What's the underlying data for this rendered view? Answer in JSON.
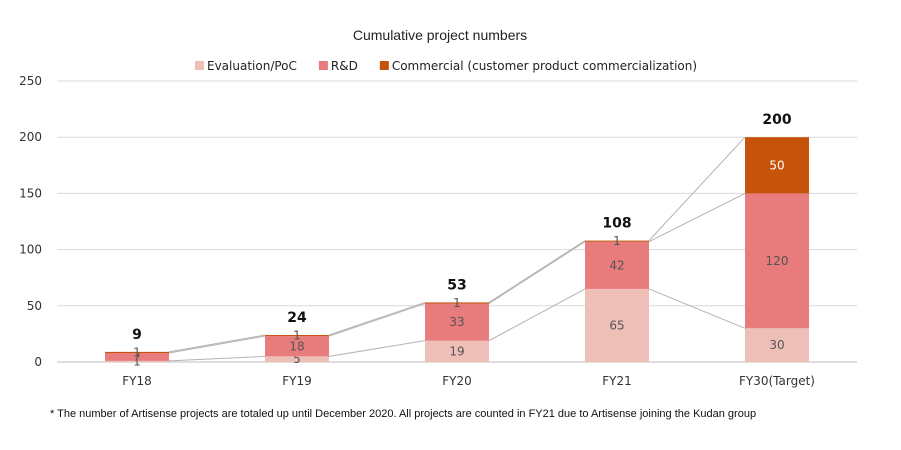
{
  "chart_data": {
    "type": "bar",
    "title": "Cumulative project numbers",
    "categories": [
      "FY18",
      "FY19",
      "FY20",
      "FY21",
      "FY30(Target)"
    ],
    "series": [
      {
        "name": "Evaluation/PoC",
        "values": [
          1,
          5,
          19,
          65,
          30
        ],
        "color": "#eebfb7"
      },
      {
        "name": "R&D",
        "values": [
          7,
          18,
          33,
          42,
          120
        ],
        "color": "#e87b7b"
      },
      {
        "name": "Commercial (customer product commercialization)",
        "values": [
          1,
          1,
          1,
          1,
          50
        ],
        "color": "#c55309"
      }
    ],
    "totals": [
      9,
      24,
      53,
      108,
      200
    ],
    "ylim": [
      0,
      250
    ],
    "yticks": [
      0,
      50,
      100,
      150,
      200,
      250
    ],
    "grid": true,
    "legend": "top",
    "stacked": true,
    "connector_lines": true
  },
  "footnote": "* The number of Artisense projects are totaled up until December 2020. All projects are counted in FY21 due to Artisense joining the Kudan group"
}
